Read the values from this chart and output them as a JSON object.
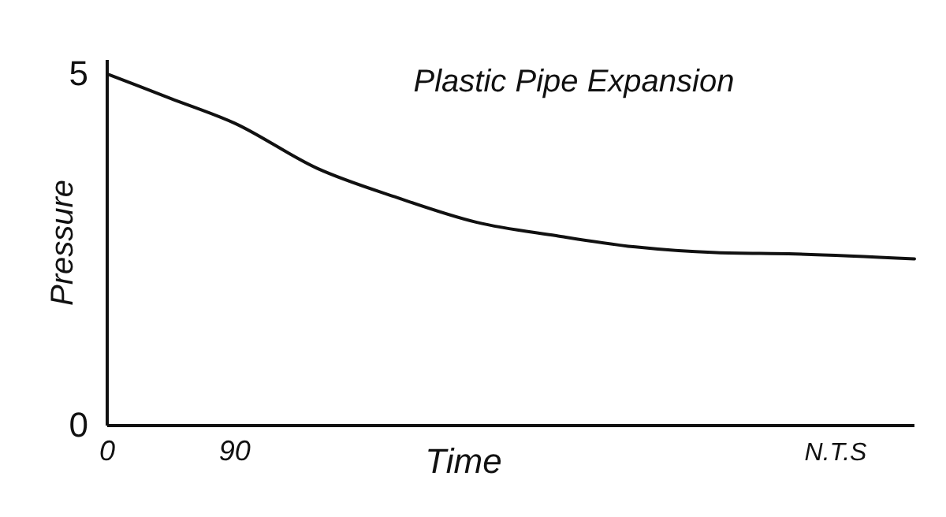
{
  "chart_data": {
    "type": "line",
    "title": "Plastic Pipe Expansion",
    "xlabel": "Time",
    "ylabel": "Pressure",
    "x": [
      0,
      45,
      90,
      148,
      205,
      261,
      317,
      373,
      430,
      486,
      570
    ],
    "series": [
      {
        "color": "#111111",
        "values": [
          5,
          4.65,
          4.3,
          3.66,
          3.24,
          2.89,
          2.7,
          2.54,
          2.46,
          2.44,
          2.37
        ]
      }
    ],
    "xlim": [
      0,
      570
    ],
    "xticks": [
      0,
      90
    ],
    "ylim": [
      0,
      5.2
    ],
    "yticks": [
      0,
      5
    ],
    "annotations": [
      "N.T.S"
    ],
    "grid": false,
    "marker": "none",
    "line_style": "solid"
  }
}
